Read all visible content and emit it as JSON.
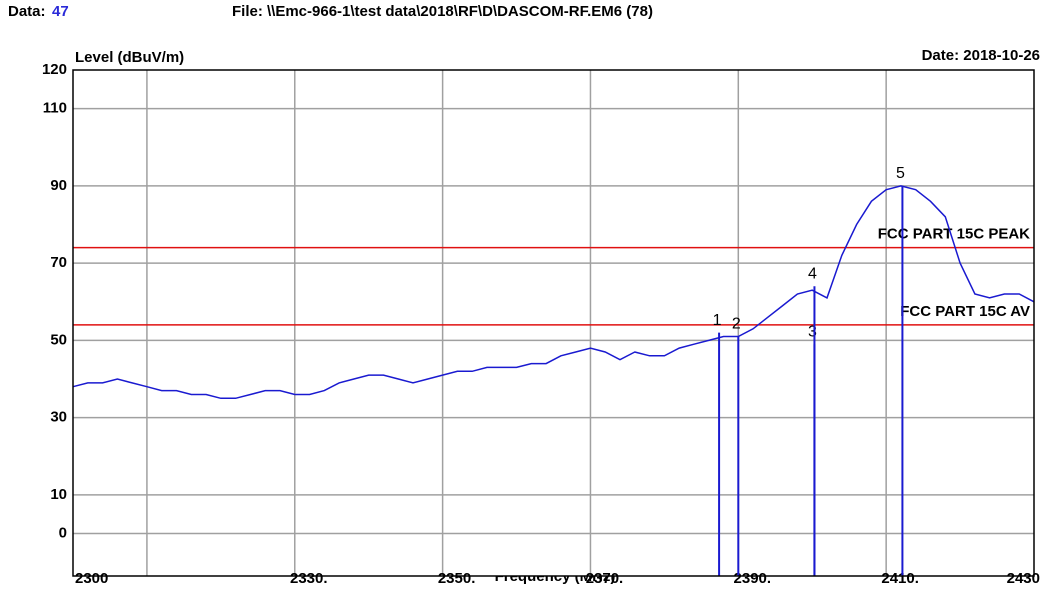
{
  "data_label": "Data:",
  "data_number": "47",
  "file": "File: \\\\Emc-966-1\\test data\\2018\\RF\\D\\DASCOM-RF.EM6  (78)",
  "chart_data": {
    "type": "line",
    "y_label": "Level (dBuV/m)",
    "date": "Date: 2018-10-26",
    "x_label": "Frequency (MHz)",
    "xlim": [
      2300,
      2430
    ],
    "ylim": [
      -11,
      120
    ],
    "xticks": [
      2300,
      {
        "value": 2330,
        "label": "2330."
      },
      {
        "value": 2350,
        "label": "2350."
      },
      {
        "value": 2370,
        "label": "2370."
      },
      {
        "value": 2390,
        "label": "2390."
      },
      {
        "value": 2410,
        "label": "2410."
      },
      2430
    ],
    "xgrid": [
      2310,
      2330,
      2350,
      2370,
      2390,
      2410
    ],
    "yticks": [
      0,
      10,
      30,
      50,
      70,
      90,
      110,
      120
    ],
    "grid": true,
    "series": [
      {
        "color": "#1a1ad0",
        "x": [
          2300,
          2302,
          2304,
          2306,
          2308,
          2310,
          2312,
          2314,
          2316,
          2318,
          2320,
          2322,
          2324,
          2326,
          2328,
          2330,
          2332,
          2334,
          2336,
          2338,
          2340,
          2342,
          2344,
          2346,
          2348,
          2350,
          2352,
          2354,
          2356,
          2358,
          2360,
          2362,
          2364,
          2366,
          2368,
          2370,
          2372,
          2374,
          2376,
          2378,
          2380,
          2382,
          2384,
          2386,
          2388,
          2390,
          2392,
          2394,
          2396,
          2398,
          2400,
          2402,
          2404,
          2406,
          2408,
          2410,
          2412,
          2414,
          2416,
          2418,
          2420,
          2422,
          2424,
          2426,
          2428,
          2430
        ],
        "values": [
          38,
          39,
          39,
          40,
          39,
          38,
          37,
          37,
          36,
          36,
          35,
          35,
          36,
          37,
          37,
          36,
          36,
          37,
          39,
          40,
          41,
          41,
          40,
          39,
          40,
          41,
          42,
          42,
          43,
          43,
          43,
          44,
          44,
          46,
          47,
          48,
          47,
          45,
          47,
          46,
          46,
          48,
          49,
          50,
          51,
          51,
          53,
          56,
          59,
          62,
          63,
          61,
          72,
          80,
          86,
          89,
          90,
          89,
          86,
          82,
          70,
          62,
          61,
          62,
          62,
          60
        ]
      }
    ],
    "limits": [
      {
        "name": "FCC PART 15C PEAK",
        "value": 74,
        "color": "#e01010"
      },
      {
        "name": "FCC PART 15C  AV",
        "value": 54,
        "color": "#e01010"
      }
    ],
    "markers": [
      {
        "label": "1",
        "x": 2387.4,
        "y": 52
      },
      {
        "label": "2",
        "x": 2390,
        "y": 51
      },
      {
        "label": "3",
        "x": 2400.3,
        "y": 49
      },
      {
        "label": "4",
        "x": 2400.3,
        "y": 64
      },
      {
        "label": "5",
        "x": 2412.2,
        "y": 90
      }
    ],
    "marker_color": "#1a1ad0"
  }
}
